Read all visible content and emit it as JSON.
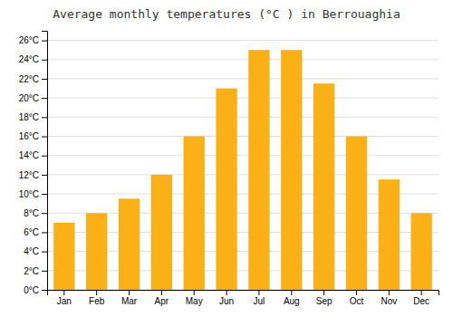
{
  "chart_data": {
    "type": "bar",
    "title": "Average monthly temperatures (°C ) in Berrouaghia",
    "categories": [
      "Jan",
      "Feb",
      "Mar",
      "Apr",
      "May",
      "Jun",
      "Jul",
      "Aug",
      "Sep",
      "Oct",
      "Nov",
      "Dec"
    ],
    "values": [
      7,
      8,
      9.5,
      12,
      16,
      21,
      25,
      25,
      21.5,
      16,
      11.5,
      8
    ],
    "color": "#FBB116",
    "ylim": [
      0,
      27
    ],
    "yticks": [
      {
        "value": 0,
        "label": "0°C"
      },
      {
        "value": 2,
        "label": "2°C"
      },
      {
        "value": 4,
        "label": "4°C"
      },
      {
        "value": 6,
        "label": "6°C"
      },
      {
        "value": 8,
        "label": "8°C"
      },
      {
        "value": 10,
        "label": "10°C"
      },
      {
        "value": 12,
        "label": "12°C"
      },
      {
        "value": 14,
        "label": "14°C"
      },
      {
        "value": 16,
        "label": "16°C"
      },
      {
        "value": 18,
        "label": "18°C"
      },
      {
        "value": 20,
        "label": "20°C"
      },
      {
        "value": 22,
        "label": "22°C"
      },
      {
        "value": 24,
        "label": "24°C"
      },
      {
        "value": 26,
        "label": "26°C"
      }
    ],
    "grid": true
  }
}
